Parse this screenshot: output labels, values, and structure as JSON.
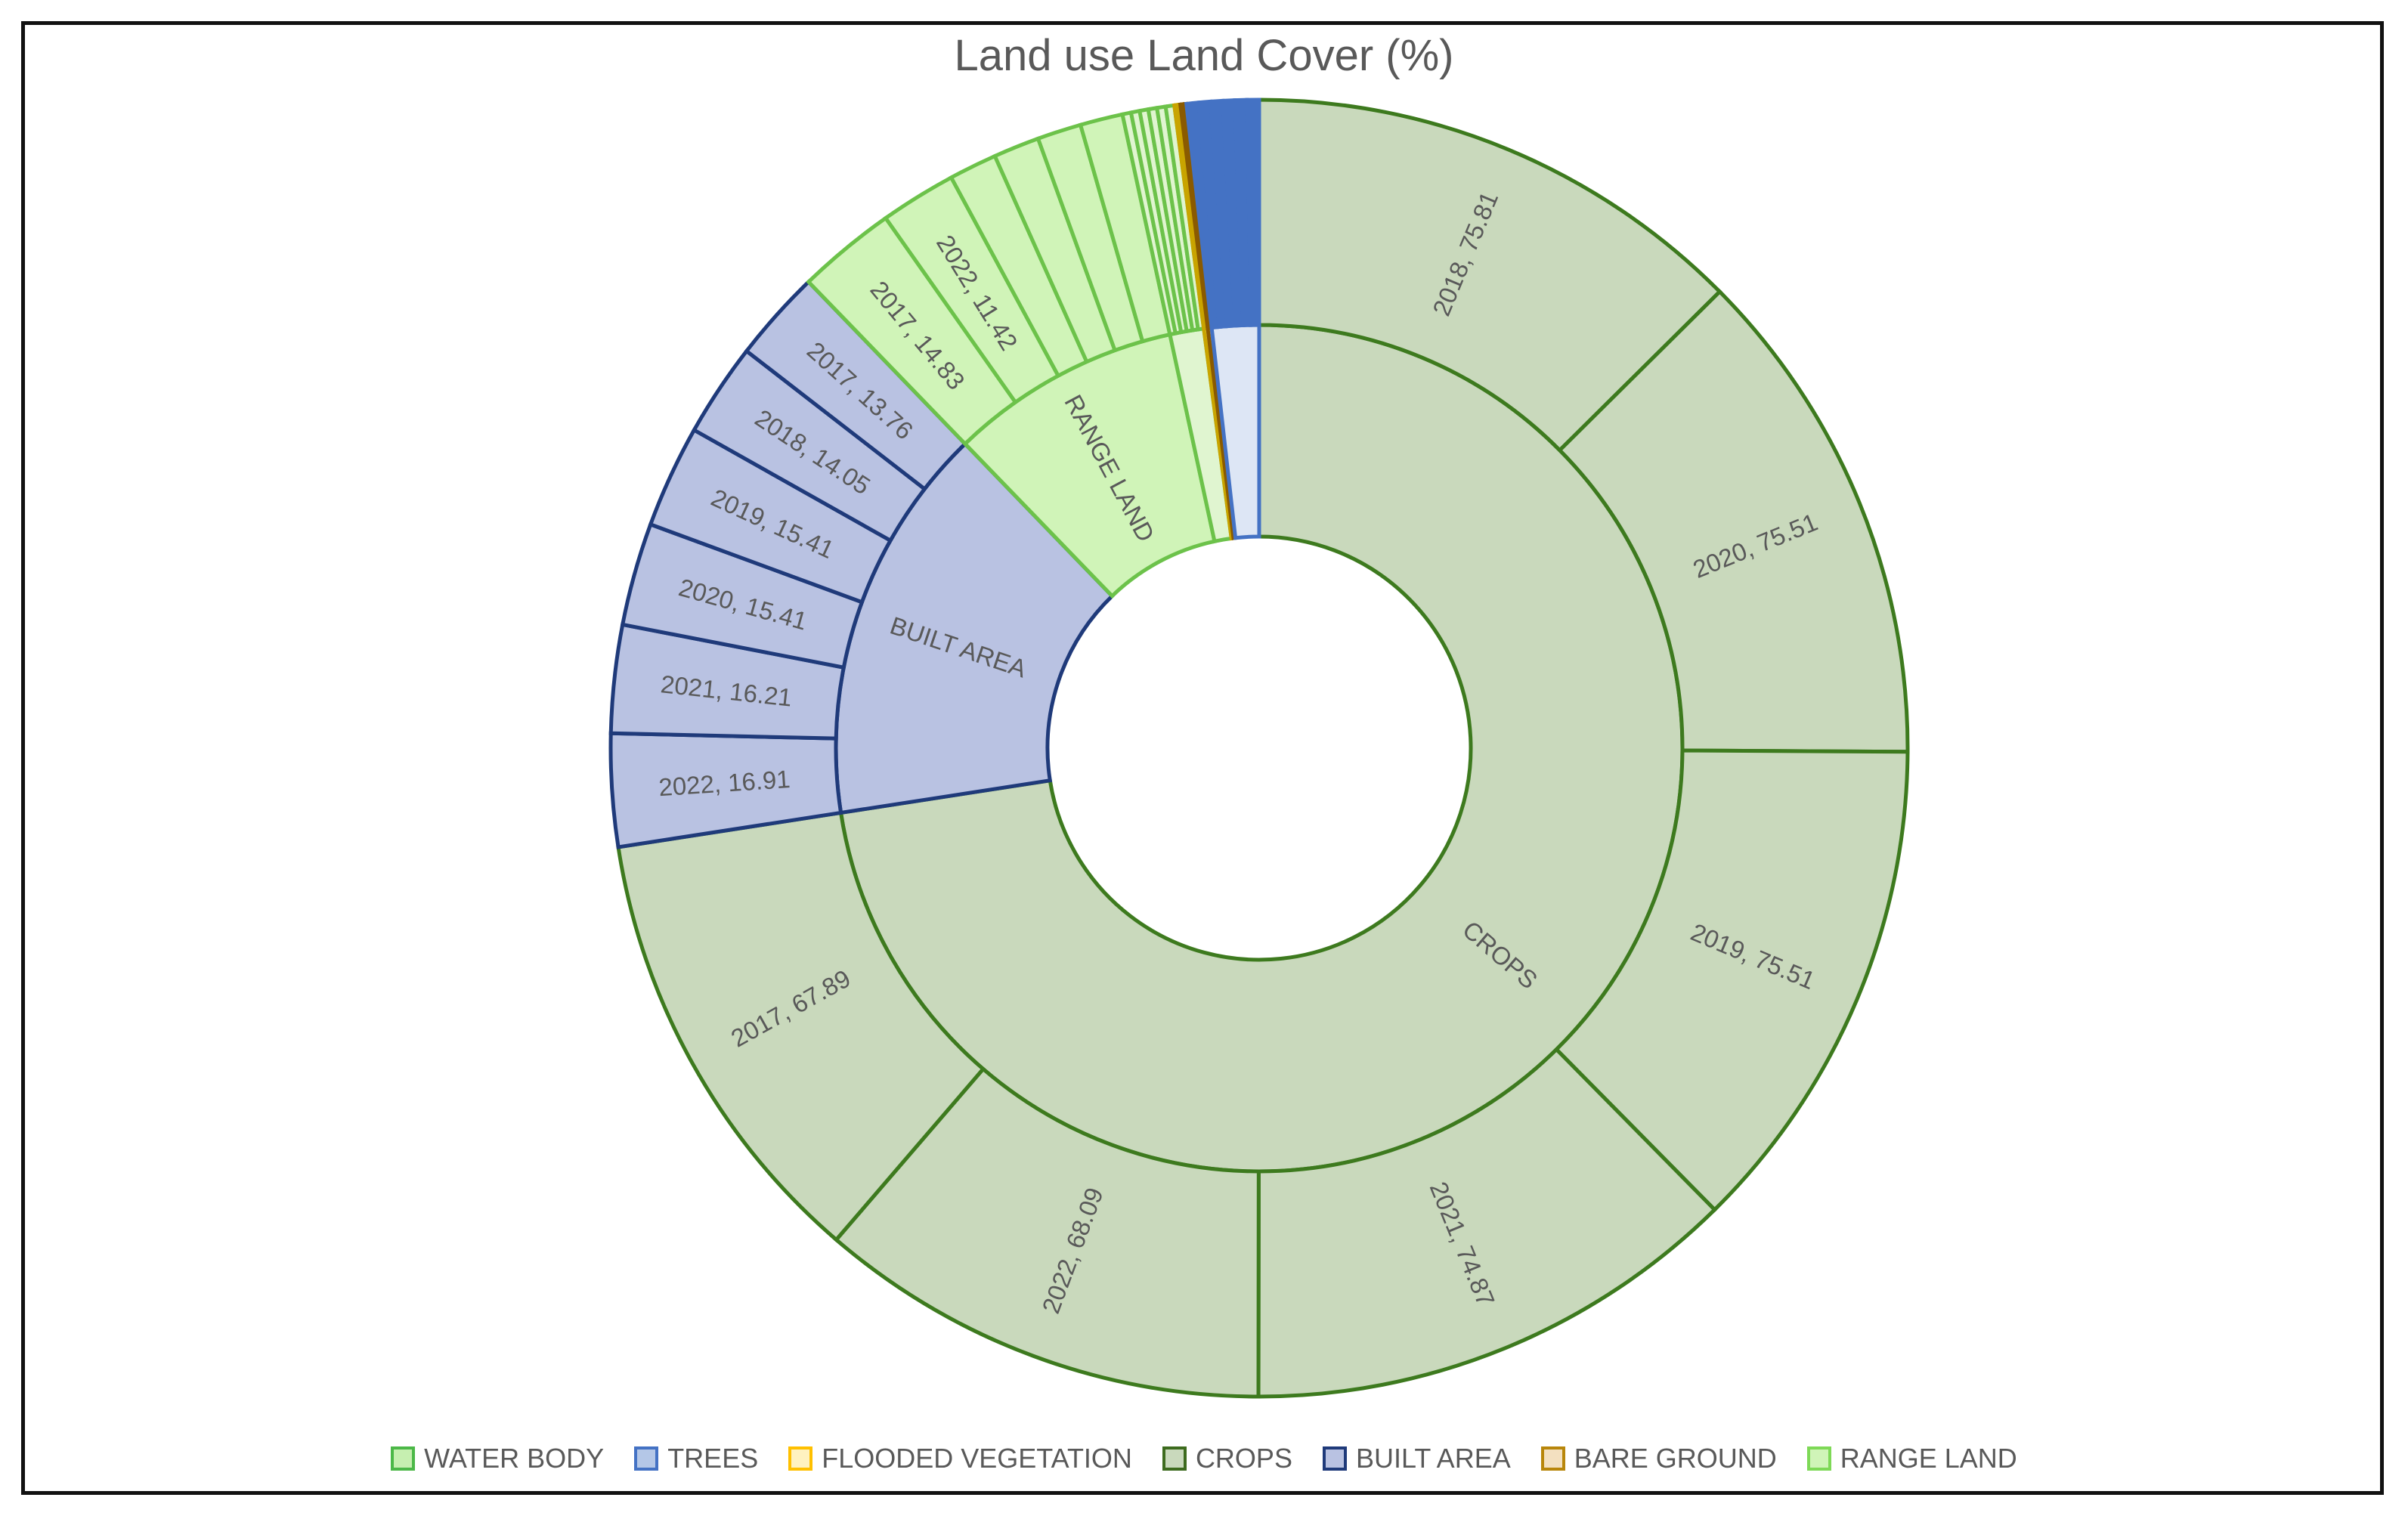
{
  "chart_data": {
    "type": "sunburst",
    "title": "Land use Land Cover (%)",
    "legend_position": "bottom",
    "start_angle_deg": 0,
    "direction": "clockwise",
    "categories": [
      {
        "name": "CROPS",
        "show_name": true,
        "fill": "#c9d9bc",
        "stroke": "#3d7a1e",
        "children": [
          {
            "year": "2018",
            "value": 75.81,
            "label": "2018, 75.81"
          },
          {
            "year": "2020",
            "value": 75.51,
            "label": "2020, 75.51"
          },
          {
            "year": "2019",
            "value": 75.51,
            "label": "2019, 75.51"
          },
          {
            "year": "2021",
            "value": 74.87,
            "label": "2021, 74.87"
          },
          {
            "year": "2022",
            "value": 68.09,
            "label": "2022, 68.09"
          },
          {
            "year": "2017",
            "value": 67.89,
            "label": "2017, 67.89"
          }
        ]
      },
      {
        "name": "BUILT AREA",
        "show_name": true,
        "fill": "#b9c2e2",
        "stroke": "#1f3a7a",
        "children": [
          {
            "year": "2022",
            "value": 16.91,
            "label": "2022, 16.91"
          },
          {
            "year": "2021",
            "value": 16.21,
            "label": "2021, 16.21"
          },
          {
            "year": "2020",
            "value": 15.41,
            "label": "2020, 15.41"
          },
          {
            "year": "2019",
            "value": 15.41,
            "label": "2019, 15.41"
          },
          {
            "year": "2018",
            "value": 14.05,
            "label": "2018, 14.05"
          },
          {
            "year": "2017",
            "value": 13.76,
            "label": "2017, 13.76"
          }
        ]
      },
      {
        "name": "RANGE LAND",
        "show_name": true,
        "fill": "#d0f4b8",
        "stroke": "#6cc24a",
        "children": [
          {
            "year": "2017",
            "value": 14.83,
            "label": "2017, 14.83"
          },
          {
            "year": "2022",
            "value": 11.42,
            "label": "2022, 11.42"
          },
          {
            "value": 7.2,
            "label": ""
          },
          {
            "value": 6.9,
            "label": ""
          },
          {
            "value": 6.6,
            "label": ""
          },
          {
            "value": 6.4,
            "label": ""
          }
        ]
      },
      {
        "name": "WATER BODY",
        "show_name": false,
        "fill": "#e0f5d0",
        "stroke": "#6cc24a",
        "children": [
          {
            "value": 1.3,
            "label": ""
          },
          {
            "value": 1.3,
            "label": ""
          },
          {
            "value": 1.3,
            "label": ""
          },
          {
            "value": 1.3,
            "label": ""
          },
          {
            "value": 1.3,
            "label": ""
          },
          {
            "value": 1.3,
            "label": ""
          }
        ]
      },
      {
        "name": "FLOODED VEGETATION",
        "show_name": false,
        "fill": "#fff2c0",
        "stroke": "#c9a400",
        "children": [
          {
            "value": 0.15,
            "label": ""
          },
          {
            "value": 0.15,
            "label": ""
          },
          {
            "value": 0.15,
            "label": ""
          },
          {
            "value": 0.15,
            "label": ""
          },
          {
            "value": 0.15,
            "label": ""
          },
          {
            "value": 0.15,
            "label": ""
          }
        ]
      },
      {
        "name": "BARE GROUND",
        "show_name": false,
        "fill": "#e8d6bc",
        "stroke": "#8a5a00",
        "children": [
          {
            "value": 0.15,
            "label": ""
          },
          {
            "value": 0.15,
            "label": ""
          },
          {
            "value": 0.15,
            "label": ""
          },
          {
            "value": 0.15,
            "label": ""
          },
          {
            "value": 0.15,
            "label": ""
          },
          {
            "value": 0.15,
            "label": ""
          }
        ]
      },
      {
        "name": "TREES",
        "show_name": false,
        "fill": "#dde6f5",
        "stroke": "#4472c4",
        "outer_fill": "#4472c4",
        "children": [
          {
            "value": 1.8,
            "label": ""
          },
          {
            "value": 1.8,
            "label": ""
          },
          {
            "value": 1.8,
            "label": ""
          },
          {
            "value": 1.8,
            "label": ""
          },
          {
            "value": 1.8,
            "label": ""
          },
          {
            "value": 1.8,
            "label": ""
          }
        ]
      }
    ],
    "legend": [
      {
        "name": "WATER BODY",
        "fill": "#c6efb0",
        "stroke": "#4cb848"
      },
      {
        "name": "TREES",
        "fill": "#b4c7e7",
        "stroke": "#4472c4"
      },
      {
        "name": "FLOODED VEGETATION",
        "fill": "#fff2c0",
        "stroke": "#ffc000"
      },
      {
        "name": "CROPS",
        "fill": "#c9d9bc",
        "stroke": "#3d6b1e"
      },
      {
        "name": "BUILT AREA",
        "fill": "#b9c2e2",
        "stroke": "#1f3a7a"
      },
      {
        "name": "BARE GROUND",
        "fill": "#f3e0c0",
        "stroke": "#b8860b"
      },
      {
        "name": "RANGE LAND",
        "fill": "#d0f4b8",
        "stroke": "#7ed957"
      }
    ]
  }
}
